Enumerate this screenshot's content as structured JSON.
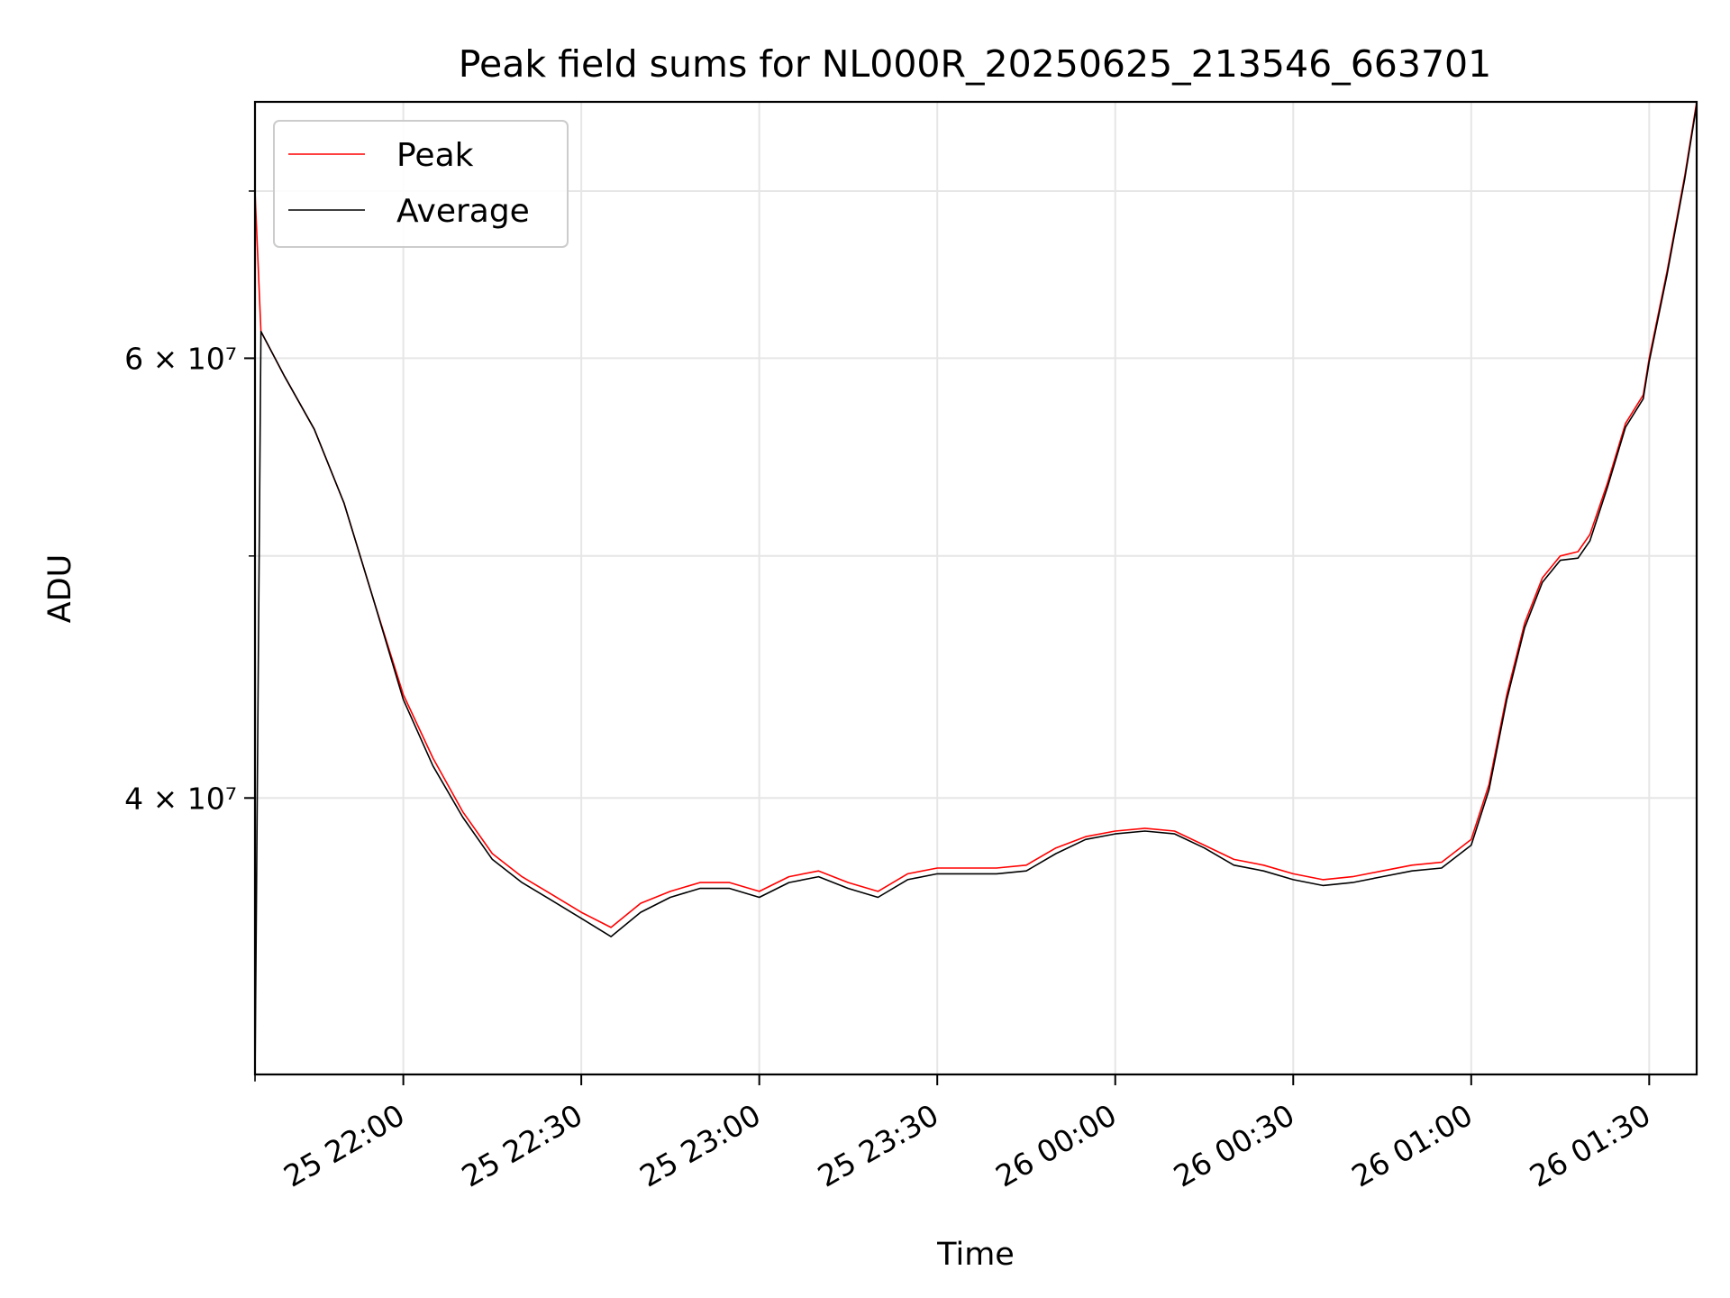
{
  "chart_data": {
    "type": "line",
    "title": "Peak field sums for NL000R_20250625_213546_663701",
    "xlabel": "Time",
    "ylabel": "ADU",
    "yscale": "log",
    "xlim": [
      "2025-06-25 21:35",
      "2025-06-26 01:38"
    ],
    "ylim": [
      31000000,
      76000000
    ],
    "grid": true,
    "legend_position": "top-left",
    "x_ticks": [
      {
        "t": "2025-06-25 22:00",
        "label": "25 22:00"
      },
      {
        "t": "2025-06-25 22:30",
        "label": "25 22:30"
      },
      {
        "t": "2025-06-25 23:00",
        "label": "25 23:00"
      },
      {
        "t": "2025-06-25 23:30",
        "label": "25 23:30"
      },
      {
        "t": "2025-06-26 00:00",
        "label": "26 00:00"
      },
      {
        "t": "2025-06-26 00:30",
        "label": "26 00:30"
      },
      {
        "t": "2025-06-26 01:00",
        "label": "26 01:00"
      },
      {
        "t": "2025-06-26 01:30",
        "label": "26 01:30"
      }
    ],
    "y_major_ticks": [
      {
        "value": 40000000,
        "label": "4 × 10⁷"
      },
      {
        "value": 60000000,
        "label": "6 × 10⁷"
      }
    ],
    "y_minor_ticks": [
      50000000,
      70000000
    ],
    "series": [
      {
        "name": "Peak",
        "color": "#ff0000",
        "x": [
          "2025-06-25 21:35",
          "2025-06-25 21:36",
          "2025-06-25 21:40",
          "2025-06-25 21:45",
          "2025-06-25 21:50",
          "2025-06-25 21:55",
          "2025-06-25 22:00",
          "2025-06-25 22:05",
          "2025-06-25 22:10",
          "2025-06-25 22:15",
          "2025-06-25 22:20",
          "2025-06-25 22:25",
          "2025-06-25 22:30",
          "2025-06-25 22:35",
          "2025-06-25 22:40",
          "2025-06-25 22:45",
          "2025-06-25 22:50",
          "2025-06-25 22:55",
          "2025-06-25 23:00",
          "2025-06-25 23:05",
          "2025-06-25 23:10",
          "2025-06-25 23:15",
          "2025-06-25 23:20",
          "2025-06-25 23:25",
          "2025-06-25 23:30",
          "2025-06-25 23:35",
          "2025-06-25 23:40",
          "2025-06-25 23:45",
          "2025-06-25 23:50",
          "2025-06-25 23:55",
          "2025-06-26 00:00",
          "2025-06-26 00:05",
          "2025-06-26 00:10",
          "2025-06-26 00:15",
          "2025-06-26 00:20",
          "2025-06-26 00:25",
          "2025-06-26 00:30",
          "2025-06-26 00:35",
          "2025-06-26 00:40",
          "2025-06-26 00:45",
          "2025-06-26 00:50",
          "2025-06-26 00:55",
          "2025-06-26 01:00",
          "2025-06-26 01:03",
          "2025-06-26 01:06",
          "2025-06-26 01:09",
          "2025-06-26 01:12",
          "2025-06-26 01:15",
          "2025-06-26 01:18",
          "2025-06-26 01:20",
          "2025-06-26 01:23",
          "2025-06-26 01:26",
          "2025-06-26 01:29",
          "2025-06-26 01:30",
          "2025-06-26 01:33",
          "2025-06-26 01:36",
          "2025-06-26 01:38"
        ],
        "y": [
          70000000,
          61500000,
          59000000,
          56200000,
          52500000,
          48000000,
          44000000,
          41500000,
          39500000,
          38000000,
          37200000,
          36600000,
          36000000,
          35500000,
          36300000,
          36700000,
          37000000,
          37000000,
          36700000,
          37200000,
          37400000,
          37000000,
          36700000,
          37300000,
          37500000,
          37500000,
          37500000,
          37600000,
          38200000,
          38600000,
          38800000,
          38900000,
          38800000,
          38300000,
          37800000,
          37600000,
          37300000,
          37100000,
          37200000,
          37400000,
          37600000,
          37700000,
          38500000,
          40500000,
          44000000,
          47000000,
          49000000,
          50000000,
          50200000,
          51000000,
          53500000,
          56500000,
          58000000,
          60000000,
          65000000,
          71000000,
          76000000
        ]
      },
      {
        "name": "Average",
        "color": "#000000",
        "x": [
          "2025-06-25 21:35",
          "2025-06-25 21:36",
          "2025-06-25 21:40",
          "2025-06-25 21:45",
          "2025-06-25 21:50",
          "2025-06-25 21:55",
          "2025-06-25 22:00",
          "2025-06-25 22:05",
          "2025-06-25 22:10",
          "2025-06-25 22:15",
          "2025-06-25 22:20",
          "2025-06-25 22:25",
          "2025-06-25 22:30",
          "2025-06-25 22:35",
          "2025-06-25 22:40",
          "2025-06-25 22:45",
          "2025-06-25 22:50",
          "2025-06-25 22:55",
          "2025-06-25 23:00",
          "2025-06-25 23:05",
          "2025-06-25 23:10",
          "2025-06-25 23:15",
          "2025-06-25 23:20",
          "2025-06-25 23:25",
          "2025-06-25 23:30",
          "2025-06-25 23:35",
          "2025-06-25 23:40",
          "2025-06-25 23:45",
          "2025-06-25 23:50",
          "2025-06-25 23:55",
          "2025-06-26 00:00",
          "2025-06-26 00:05",
          "2025-06-26 00:10",
          "2025-06-26 00:15",
          "2025-06-26 00:20",
          "2025-06-26 00:25",
          "2025-06-26 00:30",
          "2025-06-26 00:35",
          "2025-06-26 00:40",
          "2025-06-26 00:45",
          "2025-06-26 00:50",
          "2025-06-26 00:55",
          "2025-06-26 01:00",
          "2025-06-26 01:03",
          "2025-06-26 01:06",
          "2025-06-26 01:09",
          "2025-06-26 01:12",
          "2025-06-26 01:15",
          "2025-06-26 01:18",
          "2025-06-26 01:20",
          "2025-06-26 01:23",
          "2025-06-26 01:26",
          "2025-06-26 01:29",
          "2025-06-26 01:30",
          "2025-06-26 01:33",
          "2025-06-26 01:36",
          "2025-06-26 01:38"
        ],
        "y": [
          30800000,
          61500000,
          59000000,
          56200000,
          52500000,
          48000000,
          43800000,
          41200000,
          39300000,
          37800000,
          37000000,
          36400000,
          35800000,
          35200000,
          36000000,
          36500000,
          36800000,
          36800000,
          36500000,
          37000000,
          37200000,
          36800000,
          36500000,
          37100000,
          37300000,
          37300000,
          37300000,
          37400000,
          38000000,
          38500000,
          38700000,
          38800000,
          38700000,
          38200000,
          37600000,
          37400000,
          37100000,
          36900000,
          37000000,
          37200000,
          37400000,
          37500000,
          38300000,
          40300000,
          43800000,
          46800000,
          48800000,
          49800000,
          49900000,
          50700000,
          53300000,
          56300000,
          57800000,
          59800000,
          64800000,
          70800000,
          75800000
        ]
      }
    ]
  }
}
